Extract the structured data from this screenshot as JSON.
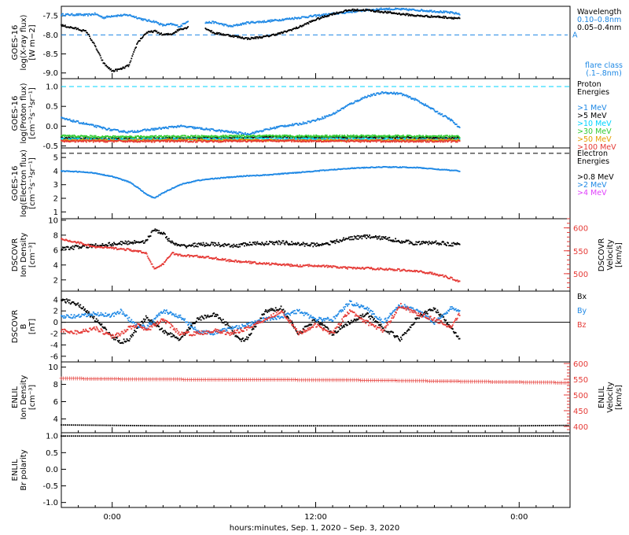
{
  "x_axis": {
    "title": "hours:minutes, Sep.  1, 2020 – Sep.  3, 2020",
    "range_hours": [
      -3,
      27
    ],
    "ticks": [
      {
        "h": 0,
        "label": "0:00"
      },
      {
        "h": 12,
        "label": "12:00"
      },
      {
        "h": 24,
        "label": "0:00"
      }
    ],
    "data_end_hours": 20.5
  },
  "panels": [
    {
      "id": "xray",
      "ylabel": [
        "GOES-16",
        "log(X-ray flux)",
        "[W m−2]"
      ],
      "ylim": [
        -9.15,
        -7.25
      ],
      "ticks": [
        {
          "v": -9.0,
          "label": "-9.0"
        },
        {
          "v": -8.5,
          "label": "-8.5"
        },
        {
          "v": -8.0,
          "label": "-8.0"
        },
        {
          "v": -7.5,
          "label": "-7.5"
        }
      ],
      "legend": [
        {
          "text": "Wavelength",
          "color": "#000000"
        },
        {
          "text": "0.10–0.8nm",
          "color": "#1e88e5"
        },
        {
          "text": "0.05–0.4nm",
          "color": "#000000"
        }
      ],
      "bottom_note": [
        {
          "text": "flare class",
          "color": "#1e88e5"
        },
        {
          "text": "(.1–.8nm)",
          "color": "#1e88e5"
        }
      ],
      "hlines": [
        {
          "v": -8.0,
          "color": "#1e88e5",
          "label": "A"
        }
      ]
    },
    {
      "id": "proton",
      "ylabel": [
        "GOES-16",
        "log(Proton flux)",
        "[cm⁻²s⁻¹sr⁻¹]"
      ],
      "ylim": [
        -0.55,
        1.2
      ],
      "ticks": [
        {
          "v": -0.5,
          "label": "-0.5"
        },
        {
          "v": 0.0,
          "label": "0.0"
        },
        {
          "v": 0.5,
          "label": "0.5"
        },
        {
          "v": 1.0,
          "label": "1.0"
        }
      ],
      "legend": [
        {
          "text": "Proton",
          "color": "#000000"
        },
        {
          "text": "Energies",
          "color": "#000000"
        },
        {
          "text": "",
          "color": "#000000"
        },
        {
          "text": ">1 MeV",
          "color": "#1e88e5"
        },
        {
          "text": ">5 MeV",
          "color": "#000000"
        },
        {
          "text": ">10 MeV",
          "color": "#00d4ff"
        },
        {
          "text": ">30 MeV",
          "color": "#33cc33"
        },
        {
          "text": ">50 MeV",
          "color": "#e6a000"
        },
        {
          "text": ">100 MeV",
          "color": "#e53935"
        }
      ],
      "hlines": [
        {
          "v": 1.0,
          "color": "#00d4ff",
          "label": ""
        }
      ]
    },
    {
      "id": "electron",
      "ylabel": [
        "GOES-16",
        "log(Electron flux)",
        "[cm⁻²s⁻¹sr⁻¹]"
      ],
      "ylim": [
        0.5,
        5.7
      ],
      "ticks": [
        {
          "v": 1,
          "label": "1"
        },
        {
          "v": 2,
          "label": "2"
        },
        {
          "v": 3,
          "label": "3"
        },
        {
          "v": 4,
          "label": "4"
        },
        {
          "v": 5,
          "label": "5"
        }
      ],
      "legend": [
        {
          "text": "Electron",
          "color": "#000000"
        },
        {
          "text": "Energies",
          "color": "#000000"
        },
        {
          "text": "",
          "color": "#000000"
        },
        {
          "text": ">0.8 MeV",
          "color": "#000000"
        },
        {
          "text": ">2 MeV",
          "color": "#1e88e5"
        },
        {
          "text": ">4 MeV",
          "color": "#e040fb"
        }
      ],
      "hlines": [
        {
          "v": 5.3,
          "color": "#000000",
          "label": ""
        }
      ]
    },
    {
      "id": "dscovr_plasma",
      "ylabel": [
        "DSCOVR",
        "Ion Density",
        "[cm⁻³]"
      ],
      "ylim": [
        0.5,
        10.2
      ],
      "ticks": [
        {
          "v": 2,
          "label": "2"
        },
        {
          "v": 4,
          "label": "4"
        },
        {
          "v": 6,
          "label": "6"
        },
        {
          "v": 8,
          "label": "8"
        },
        {
          "v": 10,
          "label": "10"
        }
      ],
      "right_axis": {
        "label": [
          "DSCOVR",
          "Velocity",
          "[km/s]"
        ],
        "ylim": [
          462,
          620
        ],
        "ticks": [
          {
            "v": 500,
            "label": "500"
          },
          {
            "v": 550,
            "label": "550"
          },
          {
            "v": 600,
            "label": "600"
          }
        ],
        "color": "#e53935"
      }
    },
    {
      "id": "dscovr_b",
      "ylabel": [
        "DSCOVR",
        "B",
        "[nT]"
      ],
      "ylim": [
        -7,
        5.5
      ],
      "ticks": [
        {
          "v": -6,
          "label": "-6"
        },
        {
          "v": -4,
          "label": "-4"
        },
        {
          "v": -2,
          "label": "-2"
        },
        {
          "v": 0,
          "label": "0"
        },
        {
          "v": 2,
          "label": "2"
        },
        {
          "v": 4,
          "label": "4"
        }
      ],
      "legend": [
        {
          "text": "Bx",
          "color": "#000000"
        },
        {
          "text": "",
          "color": "#000000"
        },
        {
          "text": "By",
          "color": "#1e88e5"
        },
        {
          "text": "",
          "color": "#000000"
        },
        {
          "text": "Bz",
          "color": "#e53935"
        }
      ],
      "hlines": [
        {
          "v": 0,
          "color": "#000000",
          "label": ""
        }
      ]
    },
    {
      "id": "enlil_plasma",
      "ylabel": [
        "ENLIL",
        "Ion Density",
        "[cm⁻³]"
      ],
      "ylim": [
        2.4,
        10.6
      ],
      "ticks": [
        {
          "v": 4,
          "label": "4"
        },
        {
          "v": 6,
          "label": "6"
        },
        {
          "v": 8,
          "label": "8"
        },
        {
          "v": 10,
          "label": "10"
        }
      ],
      "right_axis": {
        "label": [
          "ENLIL",
          "Velocity",
          "[km/s]"
        ],
        "ylim": [
          380,
          605
        ],
        "ticks": [
          {
            "v": 400,
            "label": "400"
          },
          {
            "v": 450,
            "label": "450"
          },
          {
            "v": 500,
            "label": "500"
          },
          {
            "v": 550,
            "label": "550"
          },
          {
            "v": 600,
            "label": "600"
          }
        ],
        "color": "#e53935"
      }
    },
    {
      "id": "enlil_br",
      "ylabel": [
        "ENLIL",
        "Br polarity"
      ],
      "ylim": [
        -1.15,
        1.1
      ],
      "ticks": [
        {
          "v": -1.0,
          "label": "-1.0"
        },
        {
          "v": -0.5,
          "label": "-0.5"
        },
        {
          "v": 0.0,
          "label": "0.0"
        },
        {
          "v": 0.5,
          "label": "0.5"
        },
        {
          "v": 1.0,
          "label": "1.0"
        }
      ]
    }
  ],
  "chart_data": {
    "type": "scatter",
    "x_unit": "hours from 2020-09-01 00:00",
    "series": [
      {
        "panel": "xray",
        "name": "0.10–0.8nm",
        "color": "#1e88e5",
        "x": [
          -3,
          -2,
          -1.5,
          -1,
          -0.5,
          0,
          1,
          2,
          2.5,
          3,
          3.5,
          4,
          4.5,
          5,
          5.5,
          6,
          7,
          8,
          9,
          10,
          11,
          12,
          13,
          14,
          15,
          16,
          17,
          18,
          19,
          20,
          20.5
        ],
        "y": [
          -7.47,
          -7.47,
          -7.48,
          -7.45,
          -7.55,
          -7.5,
          -7.48,
          -7.62,
          -7.65,
          -7.75,
          -7.72,
          -7.78,
          -7.62,
          null,
          -7.68,
          -7.67,
          -7.78,
          -7.68,
          -7.65,
          -7.6,
          -7.55,
          -7.5,
          -7.45,
          -7.4,
          -7.35,
          -7.32,
          -7.33,
          -7.35,
          -7.38,
          -7.42,
          -7.45
        ]
      },
      {
        "panel": "xray",
        "name": "0.05–0.4nm",
        "color": "#000000",
        "x": [
          -3,
          -2.5,
          -2,
          -1.5,
          -1,
          -0.5,
          0,
          0.5,
          1,
          1.5,
          2,
          2.5,
          3,
          3.5,
          4,
          4.5,
          5,
          5.5,
          6,
          7,
          8,
          9,
          10,
          11,
          12,
          13,
          14,
          15,
          16,
          17,
          18,
          19,
          20,
          20.5
        ],
        "y": [
          -7.75,
          -7.8,
          -7.85,
          -7.92,
          -8.3,
          -8.75,
          -8.95,
          -8.9,
          -8.8,
          -8.2,
          -7.95,
          -7.9,
          -8.0,
          -7.98,
          -7.85,
          -7.8,
          null,
          -7.82,
          -7.95,
          -8.02,
          -8.1,
          -8.05,
          -7.95,
          -7.8,
          -7.6,
          -7.45,
          -7.35,
          -7.35,
          -7.4,
          -7.45,
          -7.5,
          -7.52,
          -7.55,
          -7.57
        ]
      },
      {
        "panel": "proton",
        "name": ">1 MeV",
        "color": "#1e88e5",
        "x": [
          -3,
          -2,
          -1,
          0,
          1,
          2,
          3,
          4,
          5,
          6,
          7,
          8,
          9,
          10,
          11,
          12,
          13,
          14,
          15,
          16,
          17,
          18,
          19,
          20,
          20.5
        ],
        "y": [
          0.2,
          0.1,
          0.0,
          -0.1,
          -0.15,
          -0.1,
          -0.05,
          0.0,
          -0.05,
          -0.1,
          -0.15,
          -0.2,
          -0.1,
          0.0,
          0.05,
          0.15,
          0.3,
          0.55,
          0.75,
          0.85,
          0.82,
          0.65,
          0.4,
          0.15,
          -0.05
        ]
      },
      {
        "panel": "proton",
        "name": ">5 MeV",
        "color": "#000000",
        "x": [
          -3,
          0,
          5,
          10,
          15,
          20,
          20.5
        ],
        "y": [
          -0.3,
          -0.32,
          -0.3,
          -0.28,
          -0.28,
          -0.3,
          -0.3
        ]
      },
      {
        "panel": "proton",
        "name": ">10 MeV",
        "color": "#00d4ff",
        "x": [
          -3,
          0,
          5,
          10,
          15,
          20,
          20.5
        ],
        "y": [
          -0.33,
          -0.34,
          -0.33,
          -0.32,
          -0.33,
          -0.34,
          -0.34
        ]
      },
      {
        "panel": "proton",
        "name": ">30 MeV",
        "color": "#33cc33",
        "x": [
          -3,
          0,
          5,
          10,
          15,
          20,
          20.5
        ],
        "y": [
          -0.25,
          -0.27,
          -0.26,
          -0.25,
          -0.25,
          -0.26,
          -0.27
        ]
      },
      {
        "panel": "proton",
        "name": ">50 MeV",
        "color": "#e6a000",
        "x": [
          -3,
          0,
          5,
          10,
          15,
          20,
          20.5
        ],
        "y": [
          -0.36,
          -0.36,
          -0.35,
          -0.36,
          -0.36,
          -0.35,
          -0.36
        ]
      },
      {
        "panel": "proton",
        "name": ">100 MeV",
        "color": "#e53935",
        "x": [
          -3,
          0,
          5,
          10,
          15,
          20,
          20.5
        ],
        "y": [
          -0.38,
          -0.38,
          -0.38,
          -0.37,
          -0.38,
          -0.38,
          -0.38
        ]
      },
      {
        "panel": "electron",
        "name": ">2 MeV",
        "color": "#1e88e5",
        "x": [
          -3,
          -2,
          -1,
          0,
          1,
          1.5,
          2,
          2.5,
          3,
          3.5,
          4,
          5,
          6,
          7,
          8,
          9,
          10,
          11,
          12,
          13,
          14,
          15,
          16,
          17,
          18,
          19,
          20,
          20.5
        ],
        "y": [
          4.0,
          3.95,
          3.85,
          3.6,
          3.2,
          2.8,
          2.3,
          2.0,
          2.4,
          2.7,
          3.0,
          3.3,
          3.45,
          3.55,
          3.65,
          3.7,
          3.8,
          3.9,
          4.0,
          4.1,
          4.2,
          4.25,
          4.3,
          4.28,
          4.25,
          4.15,
          4.05,
          4.0
        ]
      },
      {
        "panel": "dscovr_plasma",
        "name": "Ion Density",
        "color": "#000000",
        "x": [
          -3,
          -2,
          -1,
          0,
          1,
          2,
          2.5,
          3,
          3.5,
          4,
          5,
          6,
          7,
          8,
          9,
          10,
          11,
          12,
          13,
          14,
          15,
          16,
          17,
          18,
          19,
          20,
          20.5
        ],
        "y": [
          6.2,
          6.4,
          6.6,
          6.8,
          7.0,
          7.2,
          8.8,
          8.2,
          7.0,
          6.5,
          6.7,
          6.8,
          6.5,
          6.8,
          6.9,
          7.0,
          6.8,
          6.7,
          7.0,
          7.6,
          7.8,
          7.6,
          7.2,
          6.9,
          7.0,
          6.8,
          6.7
        ]
      },
      {
        "panel": "dscovr_plasma",
        "name": "Velocity",
        "color": "#e53935",
        "axis": "right",
        "x": [
          -3,
          -2,
          -1,
          0,
          1,
          2,
          2.5,
          3,
          3.5,
          4,
          5,
          6,
          7,
          8,
          9,
          10,
          11,
          12,
          13,
          14,
          15,
          16,
          17,
          18,
          19,
          20,
          20.5
        ],
        "y": [
          575,
          568,
          558,
          556,
          552,
          545,
          510,
          520,
          545,
          540,
          538,
          534,
          528,
          525,
          522,
          520,
          517,
          518,
          515,
          512,
          512,
          510,
          508,
          505,
          500,
          490,
          483
        ]
      },
      {
        "panel": "dscovr_b",
        "name": "Bx",
        "color": "#000000",
        "x": [
          -3,
          -2,
          -1,
          0,
          0.5,
          1,
          1.5,
          2,
          3,
          4,
          5,
          6,
          7,
          7.5,
          8,
          9,
          10,
          11,
          12,
          13,
          14,
          15,
          16,
          17,
          18,
          19,
          20,
          20.5
        ],
        "y": [
          4.0,
          3.2,
          0.5,
          -2.5,
          -3.5,
          -3.0,
          -1.0,
          0.8,
          -1.5,
          -3.0,
          0.5,
          1.5,
          -1.0,
          -3.2,
          -2.8,
          1.8,
          2.5,
          -2.0,
          0.5,
          -2.0,
          0.0,
          1.5,
          -1.0,
          -3.0,
          0.8,
          2.5,
          -1.0,
          -3.2
        ]
      },
      {
        "panel": "dscovr_b",
        "name": "By",
        "color": "#1e88e5",
        "x": [
          -3,
          -2,
          -1,
          0,
          0.5,
          1,
          1.5,
          2,
          3,
          4,
          5,
          6,
          7,
          8,
          9,
          10,
          11,
          12,
          13,
          14,
          15,
          16,
          17,
          18,
          19,
          20,
          20.5
        ],
        "y": [
          1.0,
          1.0,
          1.5,
          1.2,
          2.0,
          0.5,
          -0.5,
          -1.0,
          2.0,
          1.0,
          -1.5,
          -2.0,
          -1.0,
          -0.5,
          0.5,
          1.0,
          2.0,
          0.5,
          0.5,
          3.5,
          2.5,
          0.0,
          3.0,
          2.0,
          0.0,
          2.5,
          2.0
        ]
      },
      {
        "panel": "dscovr_b",
        "name": "Bz",
        "color": "#e53935",
        "x": [
          -3,
          -2,
          -1,
          0,
          0.5,
          1,
          1.5,
          2,
          3,
          4,
          5,
          6,
          7,
          8,
          9,
          10,
          11,
          12,
          13,
          14,
          15,
          16,
          17,
          18,
          19,
          20,
          20.5
        ],
        "y": [
          -1.5,
          -1.8,
          -1.0,
          -2.5,
          -2.0,
          -1.0,
          -0.5,
          -1.5,
          0.5,
          -2.0,
          -2.0,
          -1.5,
          -2.0,
          -1.0,
          0.5,
          2.0,
          -2.0,
          -0.5,
          -2.0,
          2.0,
          0.0,
          -1.5,
          3.0,
          1.5,
          0.5,
          -1.0,
          1.5
        ]
      },
      {
        "panel": "enlil_plasma",
        "name": "Ion Density",
        "color": "#000000",
        "x": [
          -3,
          0,
          3,
          6,
          9,
          12,
          15,
          18,
          21,
          24,
          27
        ],
        "y": [
          3.3,
          3.25,
          3.2,
          3.2,
          3.2,
          3.2,
          3.2,
          3.2,
          3.2,
          3.2,
          3.25
        ]
      },
      {
        "panel": "enlil_plasma",
        "name": "Velocity",
        "color": "#e53935",
        "axis": "right",
        "x": [
          -3,
          0,
          3,
          6,
          9,
          12,
          15,
          18,
          21,
          24,
          27
        ],
        "y": [
          554,
          552,
          551,
          550,
          550,
          549,
          548,
          546,
          544,
          542,
          540
        ]
      },
      {
        "panel": "enlil_br",
        "name": "Br polarity",
        "color": "#000000",
        "x": [
          -3,
          27
        ],
        "y": [
          1.0,
          1.0
        ]
      }
    ]
  }
}
